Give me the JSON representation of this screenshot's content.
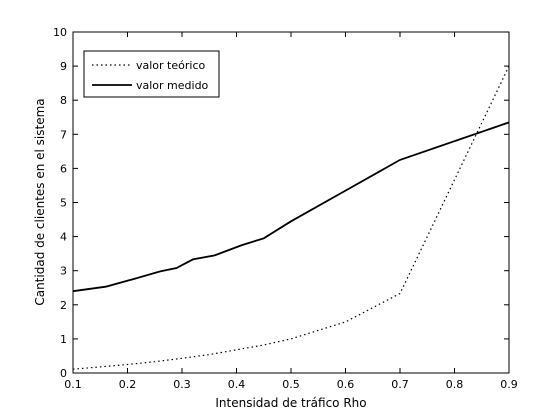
{
  "chart_data": {
    "type": "line",
    "xlabel": "Intensidad de tráfico Rho",
    "ylabel": "Cantidad de clientes en el sistema",
    "xlim": [
      0.1,
      0.9
    ],
    "ylim": [
      0,
      10
    ],
    "xticks": [
      "0.1",
      "0.2",
      "0.3",
      "0.4",
      "0.5",
      "0.6",
      "0.7",
      "0.8",
      "0.9"
    ],
    "yticks": [
      "0",
      "1",
      "2",
      "3",
      "4",
      "5",
      "6",
      "7",
      "8",
      "9",
      "10"
    ],
    "grid": false,
    "legend_position": "top-left",
    "series": [
      {
        "name": "valor teórico",
        "style": "dotted",
        "color": "#000000",
        "x": [
          0.1,
          0.15,
          0.2,
          0.25,
          0.3,
          0.35,
          0.45,
          0.5,
          0.6,
          0.7,
          0.9
        ],
        "y": [
          0.11,
          0.18,
          0.25,
          0.33,
          0.43,
          0.54,
          0.82,
          1.0,
          1.5,
          2.33,
          9.0
        ]
      },
      {
        "name": "valor medido",
        "style": "solid",
        "color": "#000000",
        "x": [
          0.1,
          0.16,
          0.21,
          0.26,
          0.29,
          0.32,
          0.36,
          0.41,
          0.45,
          0.5,
          0.6,
          0.7,
          0.9
        ],
        "y": [
          2.4,
          2.53,
          2.75,
          2.98,
          3.08,
          3.33,
          3.45,
          3.75,
          3.95,
          4.45,
          5.35,
          6.25,
          7.35
        ]
      }
    ]
  }
}
